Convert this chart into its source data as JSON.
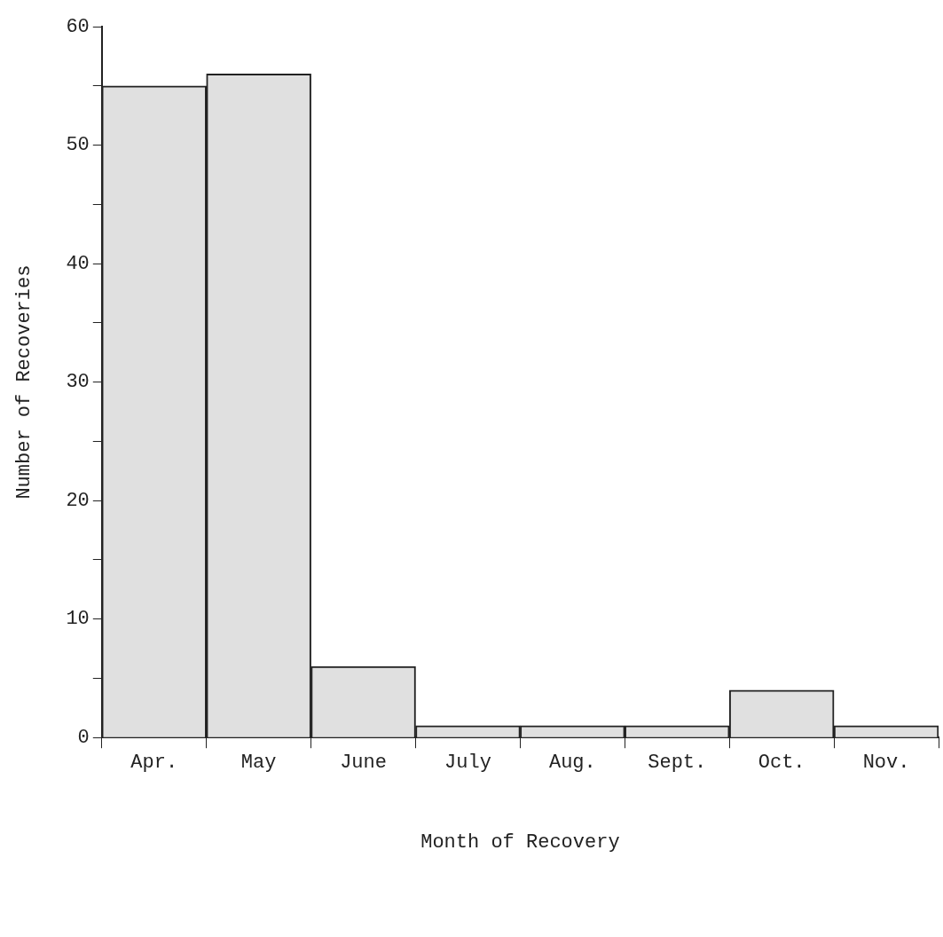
{
  "chart_data": {
    "type": "bar",
    "xlabel": "Month of Recovery",
    "ylabel": "Number of Recoveries",
    "categories": [
      "Apr.",
      "May",
      "June",
      "July",
      "Aug.",
      "Sept.",
      "Oct.",
      "Nov."
    ],
    "values": [
      55,
      56,
      6,
      1,
      1,
      1,
      4,
      1
    ],
    "color": "#e0e0e0",
    "ylim": [
      0,
      60
    ],
    "yticks": [
      0,
      {
        "value": 5,
        "label": null
      },
      10,
      {
        "value": 15,
        "label": null
      },
      20,
      {
        "value": 25,
        "label": null
      },
      30,
      {
        "value": 35,
        "label": null
      },
      40,
      {
        "value": 45,
        "label": null
      },
      50,
      {
        "value": 55,
        "label": null
      },
      60
    ],
    "grid": false,
    "legend": false
  }
}
